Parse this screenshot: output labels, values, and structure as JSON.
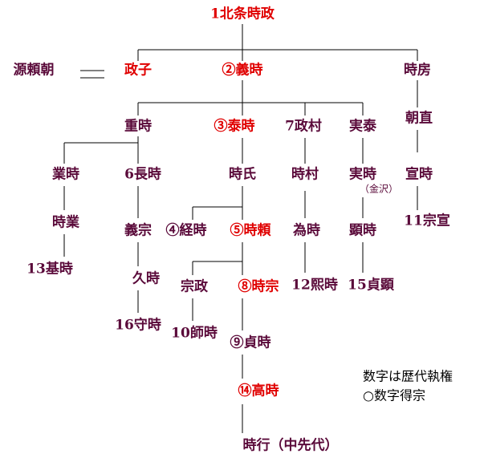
{
  "nodes": [
    {
      "label": "1北条時政"
    },
    {
      "label": "源頼朝"
    },
    {
      "label": "政子"
    },
    {
      "label": "②義時"
    },
    {
      "label": "時房"
    },
    {
      "label": "重時"
    },
    {
      "label": "③泰時"
    },
    {
      "label": "7政村"
    },
    {
      "label": "実泰"
    },
    {
      "label": "朝直"
    },
    {
      "label": "業時"
    },
    {
      "label": "6長時"
    },
    {
      "label": "時氏"
    },
    {
      "label": "時村"
    },
    {
      "label": "実時"
    },
    {
      "label": "（金沢）"
    },
    {
      "label": "宣時"
    },
    {
      "label": "時業"
    },
    {
      "label": "義宗"
    },
    {
      "label": "④経時"
    },
    {
      "label": "⑤時頼"
    },
    {
      "label": "為時"
    },
    {
      "label": "顕時"
    },
    {
      "label": "11宗宣"
    },
    {
      "label": "13基時"
    },
    {
      "label": "久時"
    },
    {
      "label": "宗政"
    },
    {
      "label": "⑧時宗"
    },
    {
      "label": "12熙時"
    },
    {
      "label": "15貞顕"
    },
    {
      "label": "16守時"
    },
    {
      "label": "10師時"
    },
    {
      "label": "⑨貞時"
    },
    {
      "label": "⑭高時"
    },
    {
      "label": "時行（中先代）"
    }
  ],
  "legend": {
    "line1": "数字は歴代執権",
    "line2": "○数字得宗"
  }
}
